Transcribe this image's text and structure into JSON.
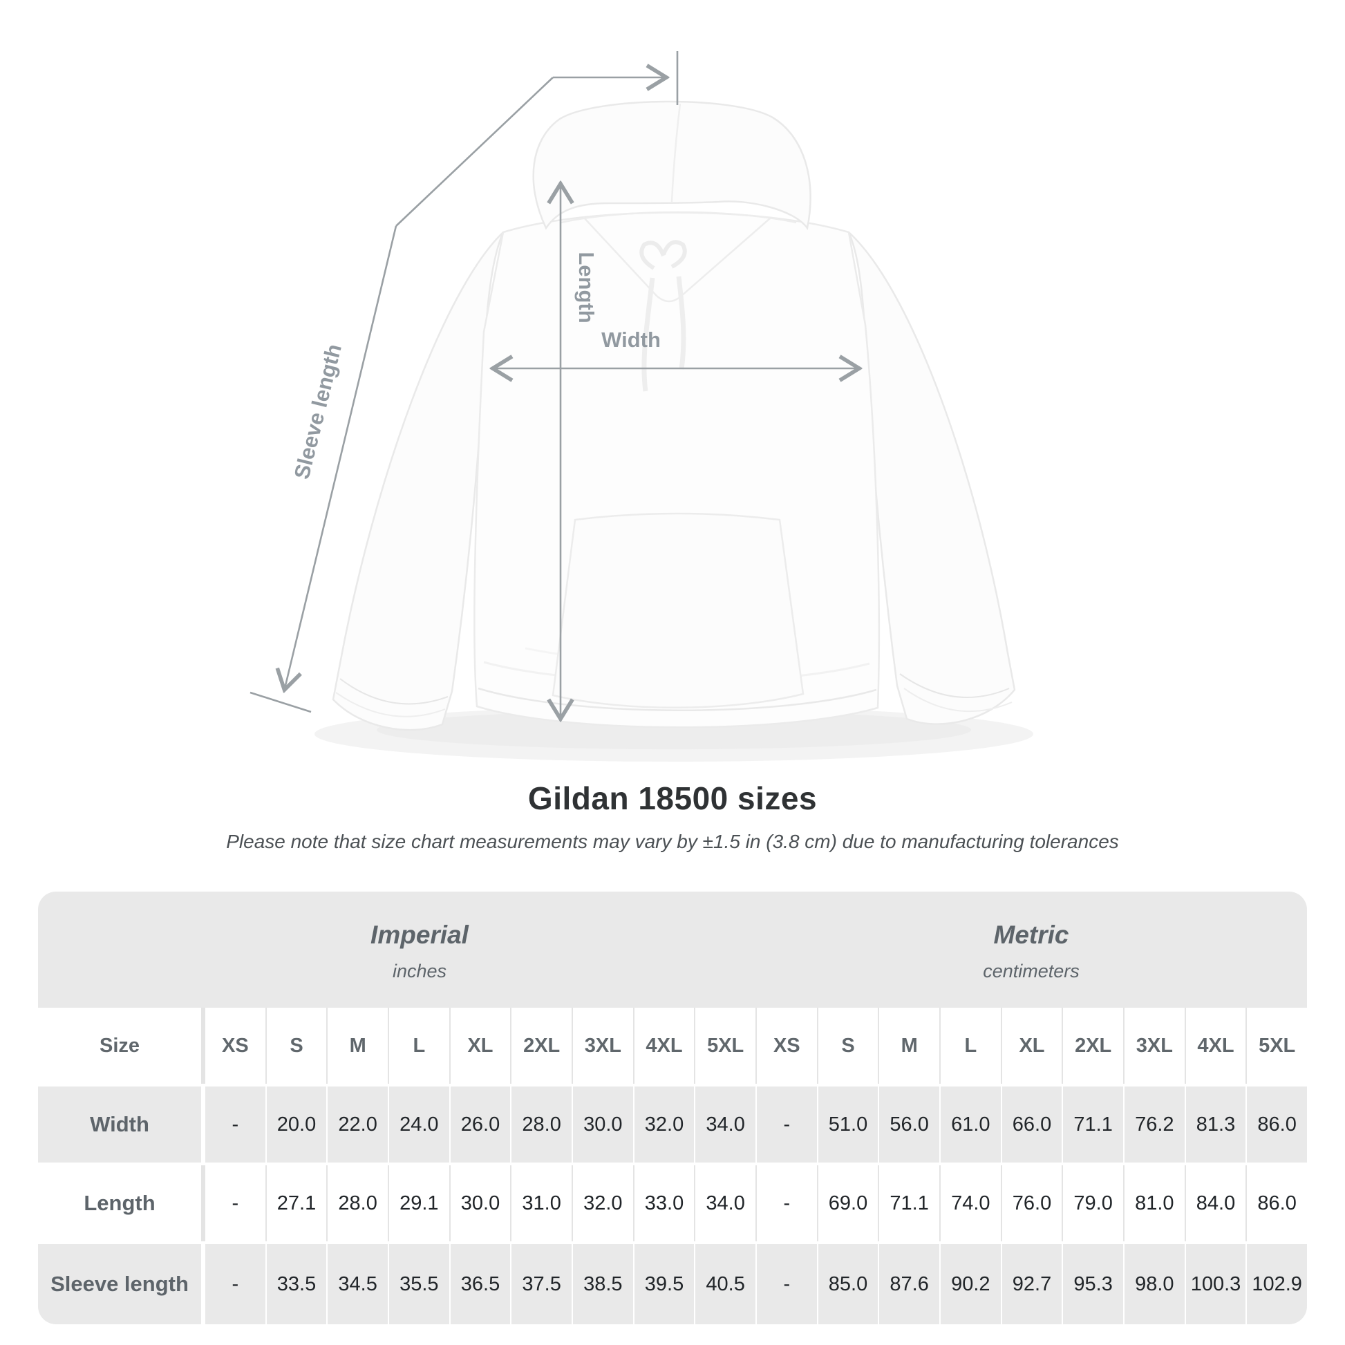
{
  "annotations": {
    "sleeve_label": "Sleeve length",
    "length_label": "Length",
    "width_label": "Width",
    "line_color": "#9aa0a4",
    "label_color": "#9199a0"
  },
  "title": "Gildan 18500 sizes",
  "subtitle": "Please note that size chart measurements may vary by ±1.5 in (3.8 cm) due to manufacturing tolerances",
  "size_table": {
    "size_col_header": "Size",
    "sizes": [
      "XS",
      "S",
      "M",
      "L",
      "XL",
      "2XL",
      "3XL",
      "4XL",
      "5XL"
    ],
    "groups": [
      {
        "title": "Imperial",
        "unit": "inches"
      },
      {
        "title": "Metric",
        "unit": "centimeters"
      }
    ],
    "rows": [
      {
        "label": "Width",
        "imperial": [
          "-",
          "20.0",
          "22.0",
          "24.0",
          "26.0",
          "28.0",
          "30.0",
          "32.0",
          "34.0"
        ],
        "metric": [
          "-",
          "51.0",
          "56.0",
          "61.0",
          "66.0",
          "71.1",
          "76.2",
          "81.3",
          "86.0"
        ]
      },
      {
        "label": "Length",
        "imperial": [
          "-",
          "27.1",
          "28.0",
          "29.1",
          "30.0",
          "31.0",
          "32.0",
          "33.0",
          "34.0"
        ],
        "metric": [
          "-",
          "69.0",
          "71.1",
          "74.0",
          "76.0",
          "79.0",
          "81.0",
          "84.0",
          "86.0"
        ]
      },
      {
        "label": "Sleeve length",
        "imperial": [
          "-",
          "33.5",
          "34.5",
          "35.5",
          "36.5",
          "37.5",
          "38.5",
          "39.5",
          "40.5"
        ],
        "metric": [
          "-",
          "85.0",
          "87.6",
          "90.2",
          "92.7",
          "95.3",
          "98.0",
          "100.3",
          "102.9"
        ]
      }
    ],
    "colors": {
      "row_gray": "#e9e9e9",
      "header_text": "#60676c",
      "value_text": "#212529"
    }
  }
}
